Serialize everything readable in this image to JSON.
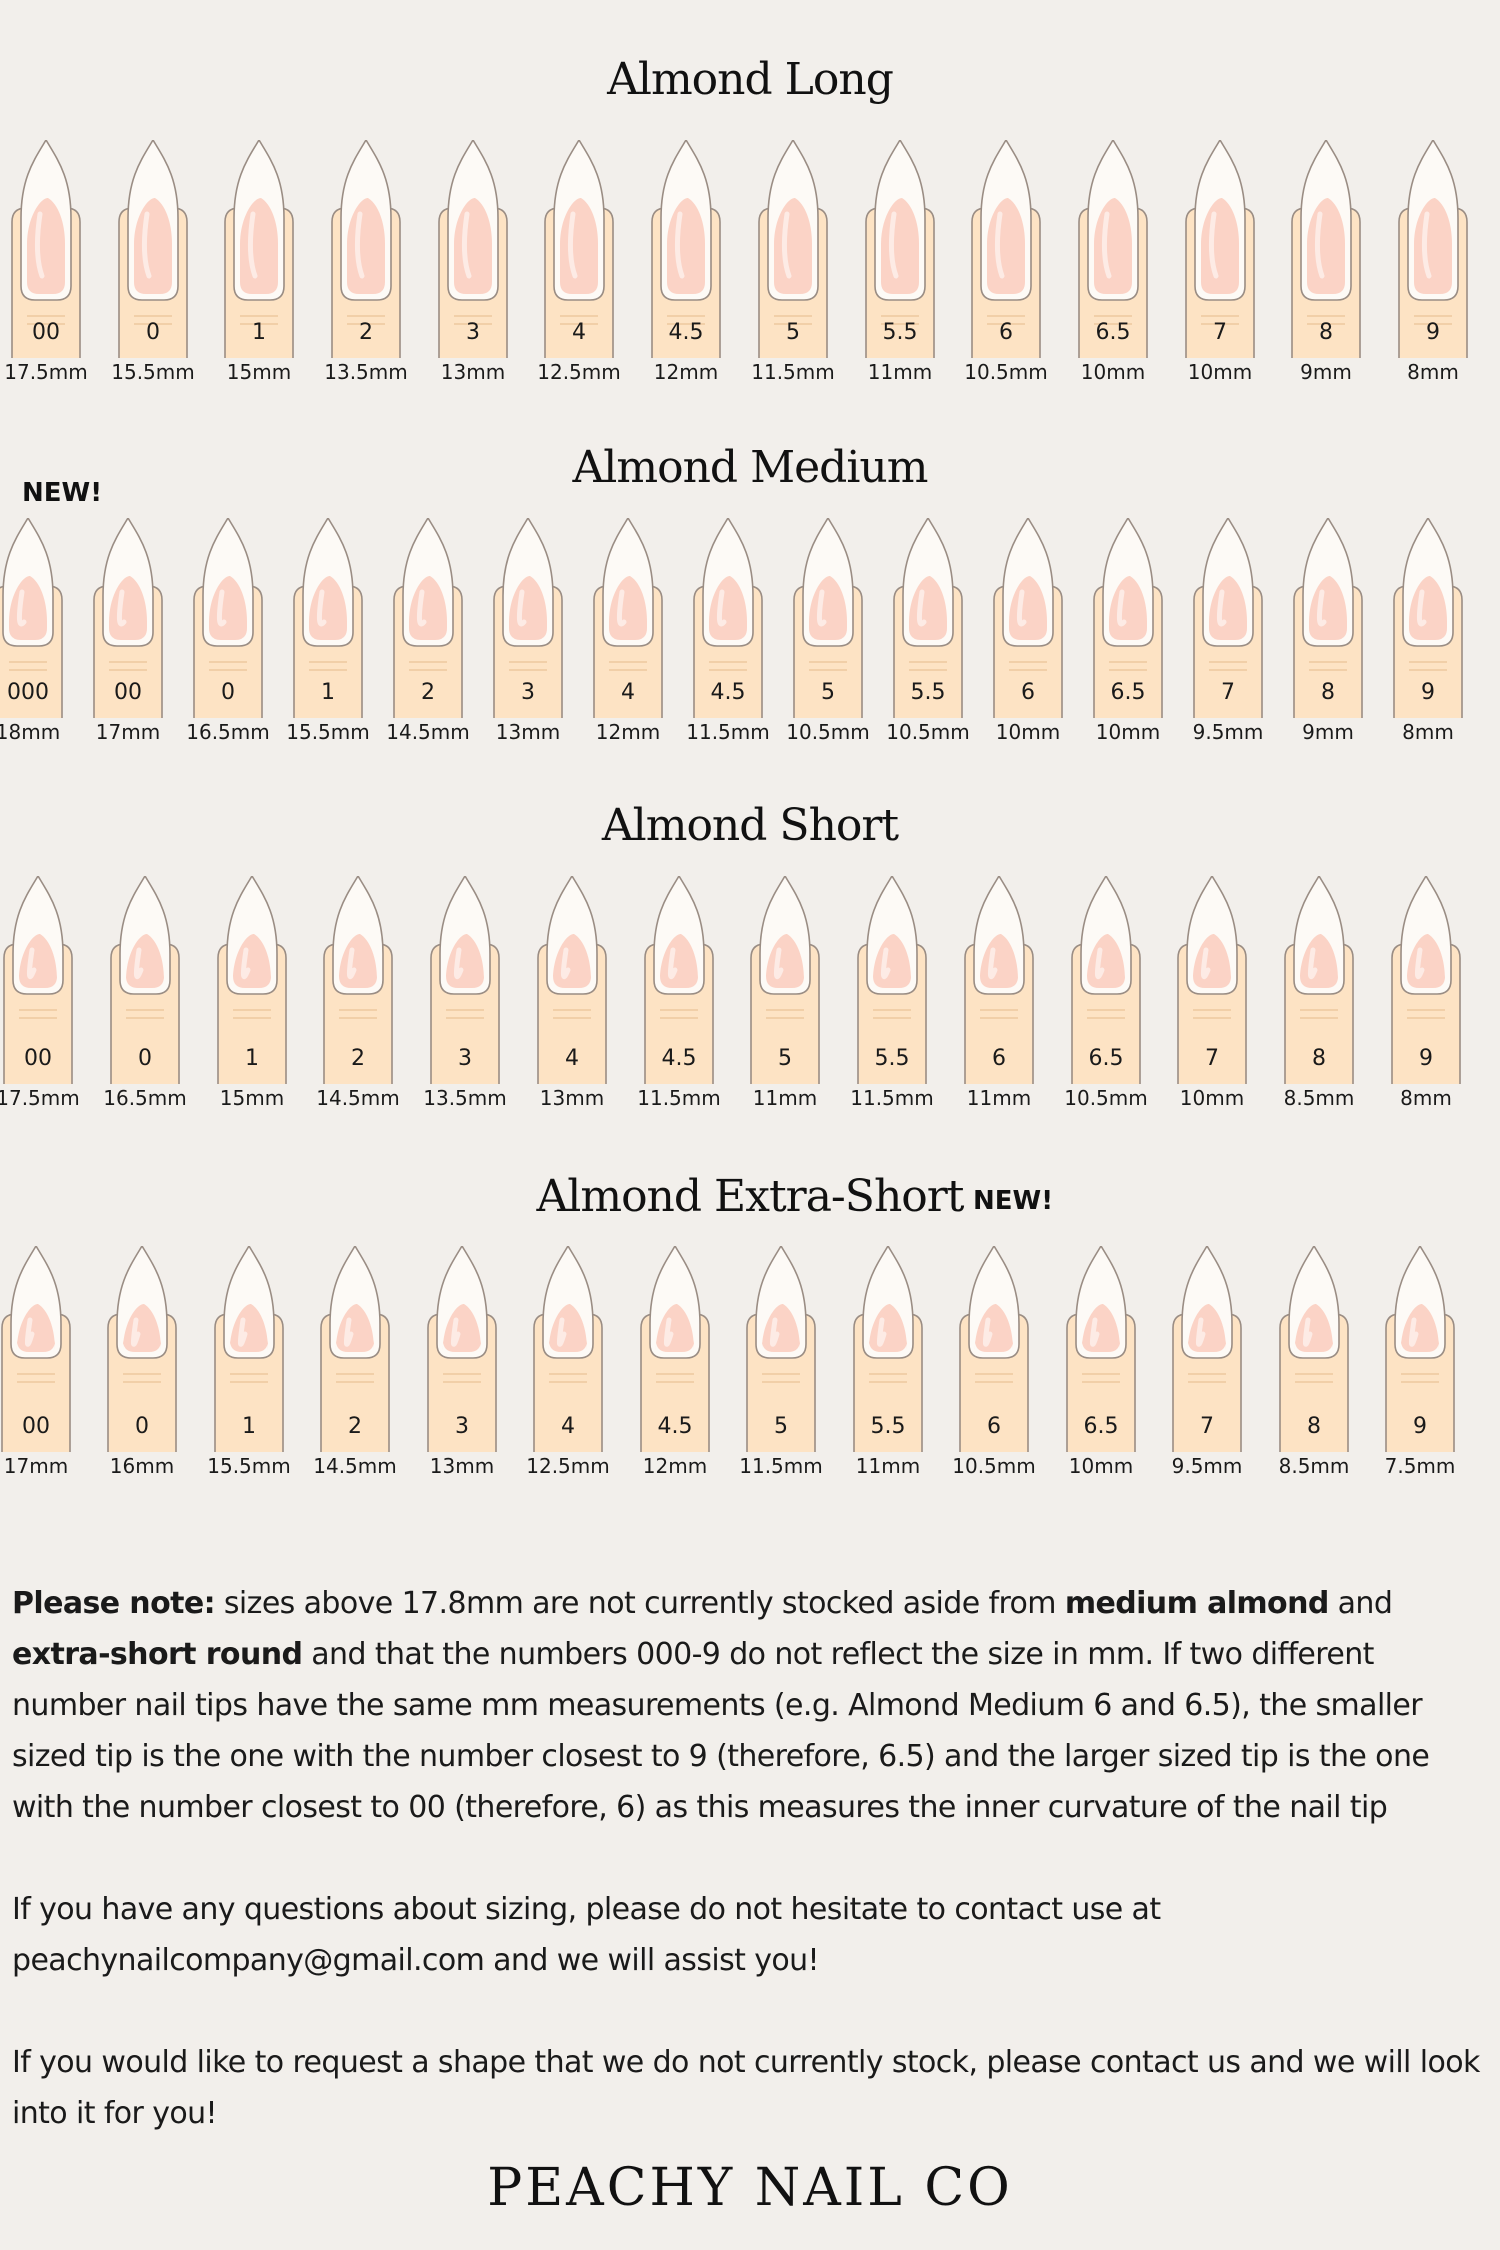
{
  "sections": [
    {
      "title": "Almond Long",
      "badge": "",
      "sizes": [
        {
          "num": "00",
          "mm": "17.5mm"
        },
        {
          "num": "0",
          "mm": "15.5mm"
        },
        {
          "num": "1",
          "mm": "15mm"
        },
        {
          "num": "2",
          "mm": "13.5mm"
        },
        {
          "num": "3",
          "mm": "13mm"
        },
        {
          "num": "4",
          "mm": "12.5mm"
        },
        {
          "num": "4.5",
          "mm": "12mm"
        },
        {
          "num": "5",
          "mm": "11.5mm"
        },
        {
          "num": "5.5",
          "mm": "11mm"
        },
        {
          "num": "6",
          "mm": "10.5mm"
        },
        {
          "num": "6.5",
          "mm": "10mm"
        },
        {
          "num": "7",
          "mm": "10mm"
        },
        {
          "num": "8",
          "mm": "9mm"
        },
        {
          "num": "9",
          "mm": "8mm"
        }
      ]
    },
    {
      "title": "Almond Medium",
      "badge": "NEW!",
      "sizes": [
        {
          "num": "000",
          "mm": "18mm"
        },
        {
          "num": "00",
          "mm": "17mm"
        },
        {
          "num": "0",
          "mm": "16.5mm"
        },
        {
          "num": "1",
          "mm": "15.5mm"
        },
        {
          "num": "2",
          "mm": "14.5mm"
        },
        {
          "num": "3",
          "mm": "13mm"
        },
        {
          "num": "4",
          "mm": "12mm"
        },
        {
          "num": "4.5",
          "mm": "11.5mm"
        },
        {
          "num": "5",
          "mm": "10.5mm"
        },
        {
          "num": "5.5",
          "mm": "10.5mm"
        },
        {
          "num": "6",
          "mm": "10mm"
        },
        {
          "num": "6.5",
          "mm": "10mm"
        },
        {
          "num": "7",
          "mm": "9.5mm"
        },
        {
          "num": "8",
          "mm": "9mm"
        },
        {
          "num": "9",
          "mm": "8mm"
        }
      ]
    },
    {
      "title": "Almond Short",
      "badge": "",
      "sizes": [
        {
          "num": "00",
          "mm": "17.5mm"
        },
        {
          "num": "0",
          "mm": "16.5mm"
        },
        {
          "num": "1",
          "mm": "15mm"
        },
        {
          "num": "2",
          "mm": "14.5mm"
        },
        {
          "num": "3",
          "mm": "13.5mm"
        },
        {
          "num": "4",
          "mm": "13mm"
        },
        {
          "num": "4.5",
          "mm": "11.5mm"
        },
        {
          "num": "5",
          "mm": "11mm"
        },
        {
          "num": "5.5",
          "mm": "11.5mm"
        },
        {
          "num": "6",
          "mm": "11mm"
        },
        {
          "num": "6.5",
          "mm": "10.5mm"
        },
        {
          "num": "7",
          "mm": "10mm"
        },
        {
          "num": "8",
          "mm": "8.5mm"
        },
        {
          "num": "9",
          "mm": "8mm"
        }
      ]
    },
    {
      "title": "Almond Extra-Short",
      "badge": "NEW!",
      "sizes": [
        {
          "num": "00",
          "mm": "17mm"
        },
        {
          "num": "0",
          "mm": "16mm"
        },
        {
          "num": "1",
          "mm": "15.5mm"
        },
        {
          "num": "2",
          "mm": "14.5mm"
        },
        {
          "num": "3",
          "mm": "13mm"
        },
        {
          "num": "4",
          "mm": "12.5mm"
        },
        {
          "num": "4.5",
          "mm": "12mm"
        },
        {
          "num": "5",
          "mm": "11.5mm"
        },
        {
          "num": "5.5",
          "mm": "11mm"
        },
        {
          "num": "6",
          "mm": "10.5mm"
        },
        {
          "num": "6.5",
          "mm": "10mm"
        },
        {
          "num": "7",
          "mm": "9.5mm"
        },
        {
          "num": "8",
          "mm": "8.5mm"
        },
        {
          "num": "9",
          "mm": "7.5mm"
        }
      ]
    }
  ],
  "notes": {
    "p1_lead": "Please note:",
    "p1_a": " sizes above 17.8mm are not currently stocked aside from ",
    "p1_b1": "medium almond",
    "p1_c": " and ",
    "p1_b2": "extra-short round",
    "p1_d": " and that the numbers 000-9 do not reflect the size in mm. If two different number nail tips have the same mm measurements (e.g. Almond Medium 6 and 6.5), the smaller sized tip is the one with the number closest to 9 (therefore, 6.5) and the larger sized tip is the one with the number closest to 00 (therefore, 6) as this measures the inner curvature of the nail tip",
    "p2": "If you have any questions about sizing, please do not hesitate to contact use at peachynailcompany@gmail.com and we will assist you!",
    "p3": "If you would like to request a shape that we do not currently stock, please contact us and we will look into it for you!"
  },
  "brand": "PEACHY NAIL CO",
  "colors": {
    "background": "#f2efeb",
    "skin": "#fde3c4",
    "nail": "#fbd3c6",
    "tip": "#fdfaf6",
    "outline": "#9a8d84"
  }
}
